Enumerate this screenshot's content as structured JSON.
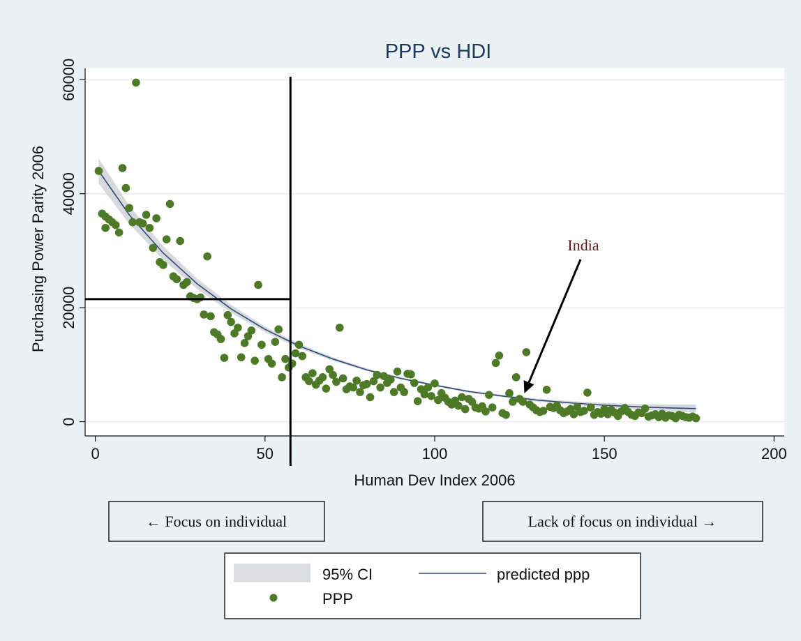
{
  "chart_data": {
    "type": "scatter",
    "title": "PPP vs HDI",
    "xlabel": "Human Dev Index 2006",
    "ylabel": "Purchasing Power Parity 2006",
    "xlim": [
      -3,
      203
    ],
    "ylim": [
      -2500,
      62000
    ],
    "xticks": [
      0,
      50,
      100,
      150,
      200
    ],
    "yticks": [
      0,
      20000,
      40000,
      60000
    ],
    "xtick_labels": [
      "0",
      "50",
      "100",
      "150",
      "200"
    ],
    "ytick_labels": [
      "0",
      "20000",
      "40000",
      "60000"
    ],
    "grid": "horizontal",
    "legend_position": "bottom",
    "series": [
      {
        "name": "PPP",
        "kind": "scatter",
        "color": "#4e7a28",
        "points": [
          [
            1,
            44000
          ],
          [
            2,
            36500
          ],
          [
            3,
            36000
          ],
          [
            3,
            34000
          ],
          [
            4,
            35500
          ],
          [
            5,
            35000
          ],
          [
            6,
            34500
          ],
          [
            7,
            33200
          ],
          [
            8,
            44500
          ],
          [
            9,
            41000
          ],
          [
            10,
            37500
          ],
          [
            11,
            35000
          ],
          [
            12,
            59500
          ],
          [
            13,
            35000
          ],
          [
            14,
            34800
          ],
          [
            15,
            36300
          ],
          [
            16,
            34000
          ],
          [
            17,
            30500
          ],
          [
            18,
            35700
          ],
          [
            19,
            28000
          ],
          [
            20,
            27500
          ],
          [
            21,
            32000
          ],
          [
            22,
            38200
          ],
          [
            23,
            25500
          ],
          [
            24,
            25000
          ],
          [
            25,
            31700
          ],
          [
            26,
            24000
          ],
          [
            27,
            24500
          ],
          [
            28,
            22000
          ],
          [
            29,
            21700
          ],
          [
            30,
            21500
          ],
          [
            31,
            21800
          ],
          [
            32,
            18800
          ],
          [
            33,
            29000
          ],
          [
            34,
            18500
          ],
          [
            35,
            15700
          ],
          [
            36,
            15300
          ],
          [
            37,
            14500
          ],
          [
            38,
            11200
          ],
          [
            39,
            18700
          ],
          [
            40,
            17500
          ],
          [
            41,
            15500
          ],
          [
            42,
            16500
          ],
          [
            43,
            11300
          ],
          [
            44,
            13800
          ],
          [
            45,
            15000
          ],
          [
            46,
            16000
          ],
          [
            47,
            10700
          ],
          [
            48,
            24000
          ],
          [
            49,
            13500
          ],
          [
            51,
            11000
          ],
          [
            52,
            10200
          ],
          [
            53,
            14000
          ],
          [
            54,
            16200
          ],
          [
            55,
            7800
          ],
          [
            56,
            11000
          ],
          [
            57,
            9500
          ],
          [
            58,
            10200
          ],
          [
            59,
            12000
          ],
          [
            60,
            13500
          ],
          [
            61,
            11500
          ],
          [
            62,
            7800
          ],
          [
            63,
            7100
          ],
          [
            64,
            8500
          ],
          [
            65,
            6500
          ],
          [
            66,
            7200
          ],
          [
            67,
            7800
          ],
          [
            68,
            5800
          ],
          [
            69,
            9200
          ],
          [
            70,
            8200
          ],
          [
            71,
            7000
          ],
          [
            72,
            16500
          ],
          [
            73,
            7600
          ],
          [
            74,
            5700
          ],
          [
            75,
            6200
          ],
          [
            76,
            6000
          ],
          [
            77,
            7200
          ],
          [
            78,
            5200
          ],
          [
            79,
            6400
          ],
          [
            80,
            6600
          ],
          [
            81,
            4300
          ],
          [
            82,
            7100
          ],
          [
            83,
            8200
          ],
          [
            84,
            6000
          ],
          [
            85,
            8000
          ],
          [
            86,
            6800
          ],
          [
            87,
            7400
          ],
          [
            88,
            5200
          ],
          [
            89,
            8800
          ],
          [
            90,
            6000
          ],
          [
            91,
            5200
          ],
          [
            92,
            8400
          ],
          [
            93,
            8300
          ],
          [
            94,
            6800
          ],
          [
            95,
            3600
          ],
          [
            96,
            5700
          ],
          [
            97,
            4800
          ],
          [
            98,
            6000
          ],
          [
            99,
            4500
          ],
          [
            100,
            6700
          ],
          [
            101,
            3800
          ],
          [
            102,
            5000
          ],
          [
            103,
            4200
          ],
          [
            104,
            3500
          ],
          [
            105,
            3000
          ],
          [
            106,
            3700
          ],
          [
            107,
            2800
          ],
          [
            108,
            4300
          ],
          [
            109,
            2200
          ],
          [
            110,
            4000
          ],
          [
            111,
            3500
          ],
          [
            112,
            2500
          ],
          [
            113,
            2300
          ],
          [
            114,
            2700
          ],
          [
            115,
            1800
          ],
          [
            116,
            4700
          ],
          [
            117,
            2500
          ],
          [
            118,
            10300
          ],
          [
            119,
            11600
          ],
          [
            120,
            1500
          ],
          [
            121,
            1200
          ],
          [
            122,
            5000
          ],
          [
            123,
            3500
          ],
          [
            124,
            7800
          ],
          [
            125,
            4000
          ],
          [
            126,
            3500
          ],
          [
            127,
            12200
          ],
          [
            128,
            3000
          ],
          [
            129,
            2500
          ],
          [
            130,
            2000
          ],
          [
            131,
            1700
          ],
          [
            132,
            1900
          ],
          [
            133,
            5600
          ],
          [
            134,
            2600
          ],
          [
            135,
            2400
          ],
          [
            136,
            2800
          ],
          [
            137,
            2000
          ],
          [
            138,
            1500
          ],
          [
            139,
            1800
          ],
          [
            140,
            2200
          ],
          [
            141,
            1300
          ],
          [
            142,
            2600
          ],
          [
            143,
            1700
          ],
          [
            144,
            1900
          ],
          [
            145,
            5100
          ],
          [
            146,
            2500
          ],
          [
            147,
            1200
          ],
          [
            148,
            1700
          ],
          [
            149,
            1400
          ],
          [
            150,
            2200
          ],
          [
            151,
            1300
          ],
          [
            152,
            2100
          ],
          [
            153,
            1600
          ],
          [
            154,
            1000
          ],
          [
            155,
            1800
          ],
          [
            156,
            2400
          ],
          [
            157,
            1700
          ],
          [
            158,
            1200
          ],
          [
            159,
            1000
          ],
          [
            160,
            1600
          ],
          [
            161,
            1500
          ],
          [
            162,
            2300
          ],
          [
            163,
            900
          ],
          [
            164,
            1100
          ],
          [
            165,
            1300
          ],
          [
            166,
            800
          ],
          [
            167,
            1400
          ],
          [
            168,
            700
          ],
          [
            169,
            1100
          ],
          [
            170,
            1000
          ],
          [
            171,
            600
          ],
          [
            172,
            1200
          ],
          [
            173,
            1000
          ],
          [
            174,
            800
          ],
          [
            175,
            700
          ],
          [
            176,
            900
          ],
          [
            177,
            600
          ]
        ]
      },
      {
        "name": "predicted ppp",
        "kind": "line",
        "color": "#2e4a7a",
        "x": [
          1,
          10,
          20,
          30,
          40,
          50,
          60,
          70,
          80,
          90,
          100,
          110,
          120,
          130,
          140,
          150,
          160,
          170,
          177
        ],
        "y": [
          44000,
          36300,
          29600,
          24200,
          19800,
          16200,
          13300,
          11000,
          9100,
          7600,
          6400,
          5300,
          4500,
          3800,
          3300,
          2900,
          2600,
          2400,
          2300
        ]
      },
      {
        "name": "95% CI",
        "kind": "band",
        "color": "#c9ccd2",
        "x": [
          1,
          10,
          20,
          30,
          40,
          50,
          60,
          70,
          80,
          90,
          100,
          110,
          120,
          130,
          140,
          150,
          160,
          170,
          177
        ],
        "lower": [
          41800,
          34700,
          28400,
          23300,
          19100,
          15700,
          12900,
          10700,
          8850,
          7400,
          6200,
          5100,
          4300,
          3550,
          3000,
          2500,
          2100,
          1800,
          1600
        ],
        "upper": [
          46200,
          37900,
          30800,
          25100,
          20500,
          16700,
          13700,
          11300,
          9350,
          7800,
          6600,
          5500,
          4700,
          4050,
          3600,
          3300,
          3100,
          3000,
          3000
        ]
      }
    ],
    "reference_lines": {
      "vertical_x": 57.5,
      "horizontal_y": 21500
    },
    "annotations": [
      {
        "text": "India",
        "target": [
          126,
          4000
        ]
      }
    ],
    "legend_entries": [
      "95% CI",
      "predicted ppp",
      "PPP"
    ]
  },
  "caption_left": "← Focus on individual",
  "caption_right": "Lack of focus on individual →",
  "legend": {
    "ci_label": "95% CI",
    "line_label": "predicted ppp",
    "points_label": "PPP"
  }
}
